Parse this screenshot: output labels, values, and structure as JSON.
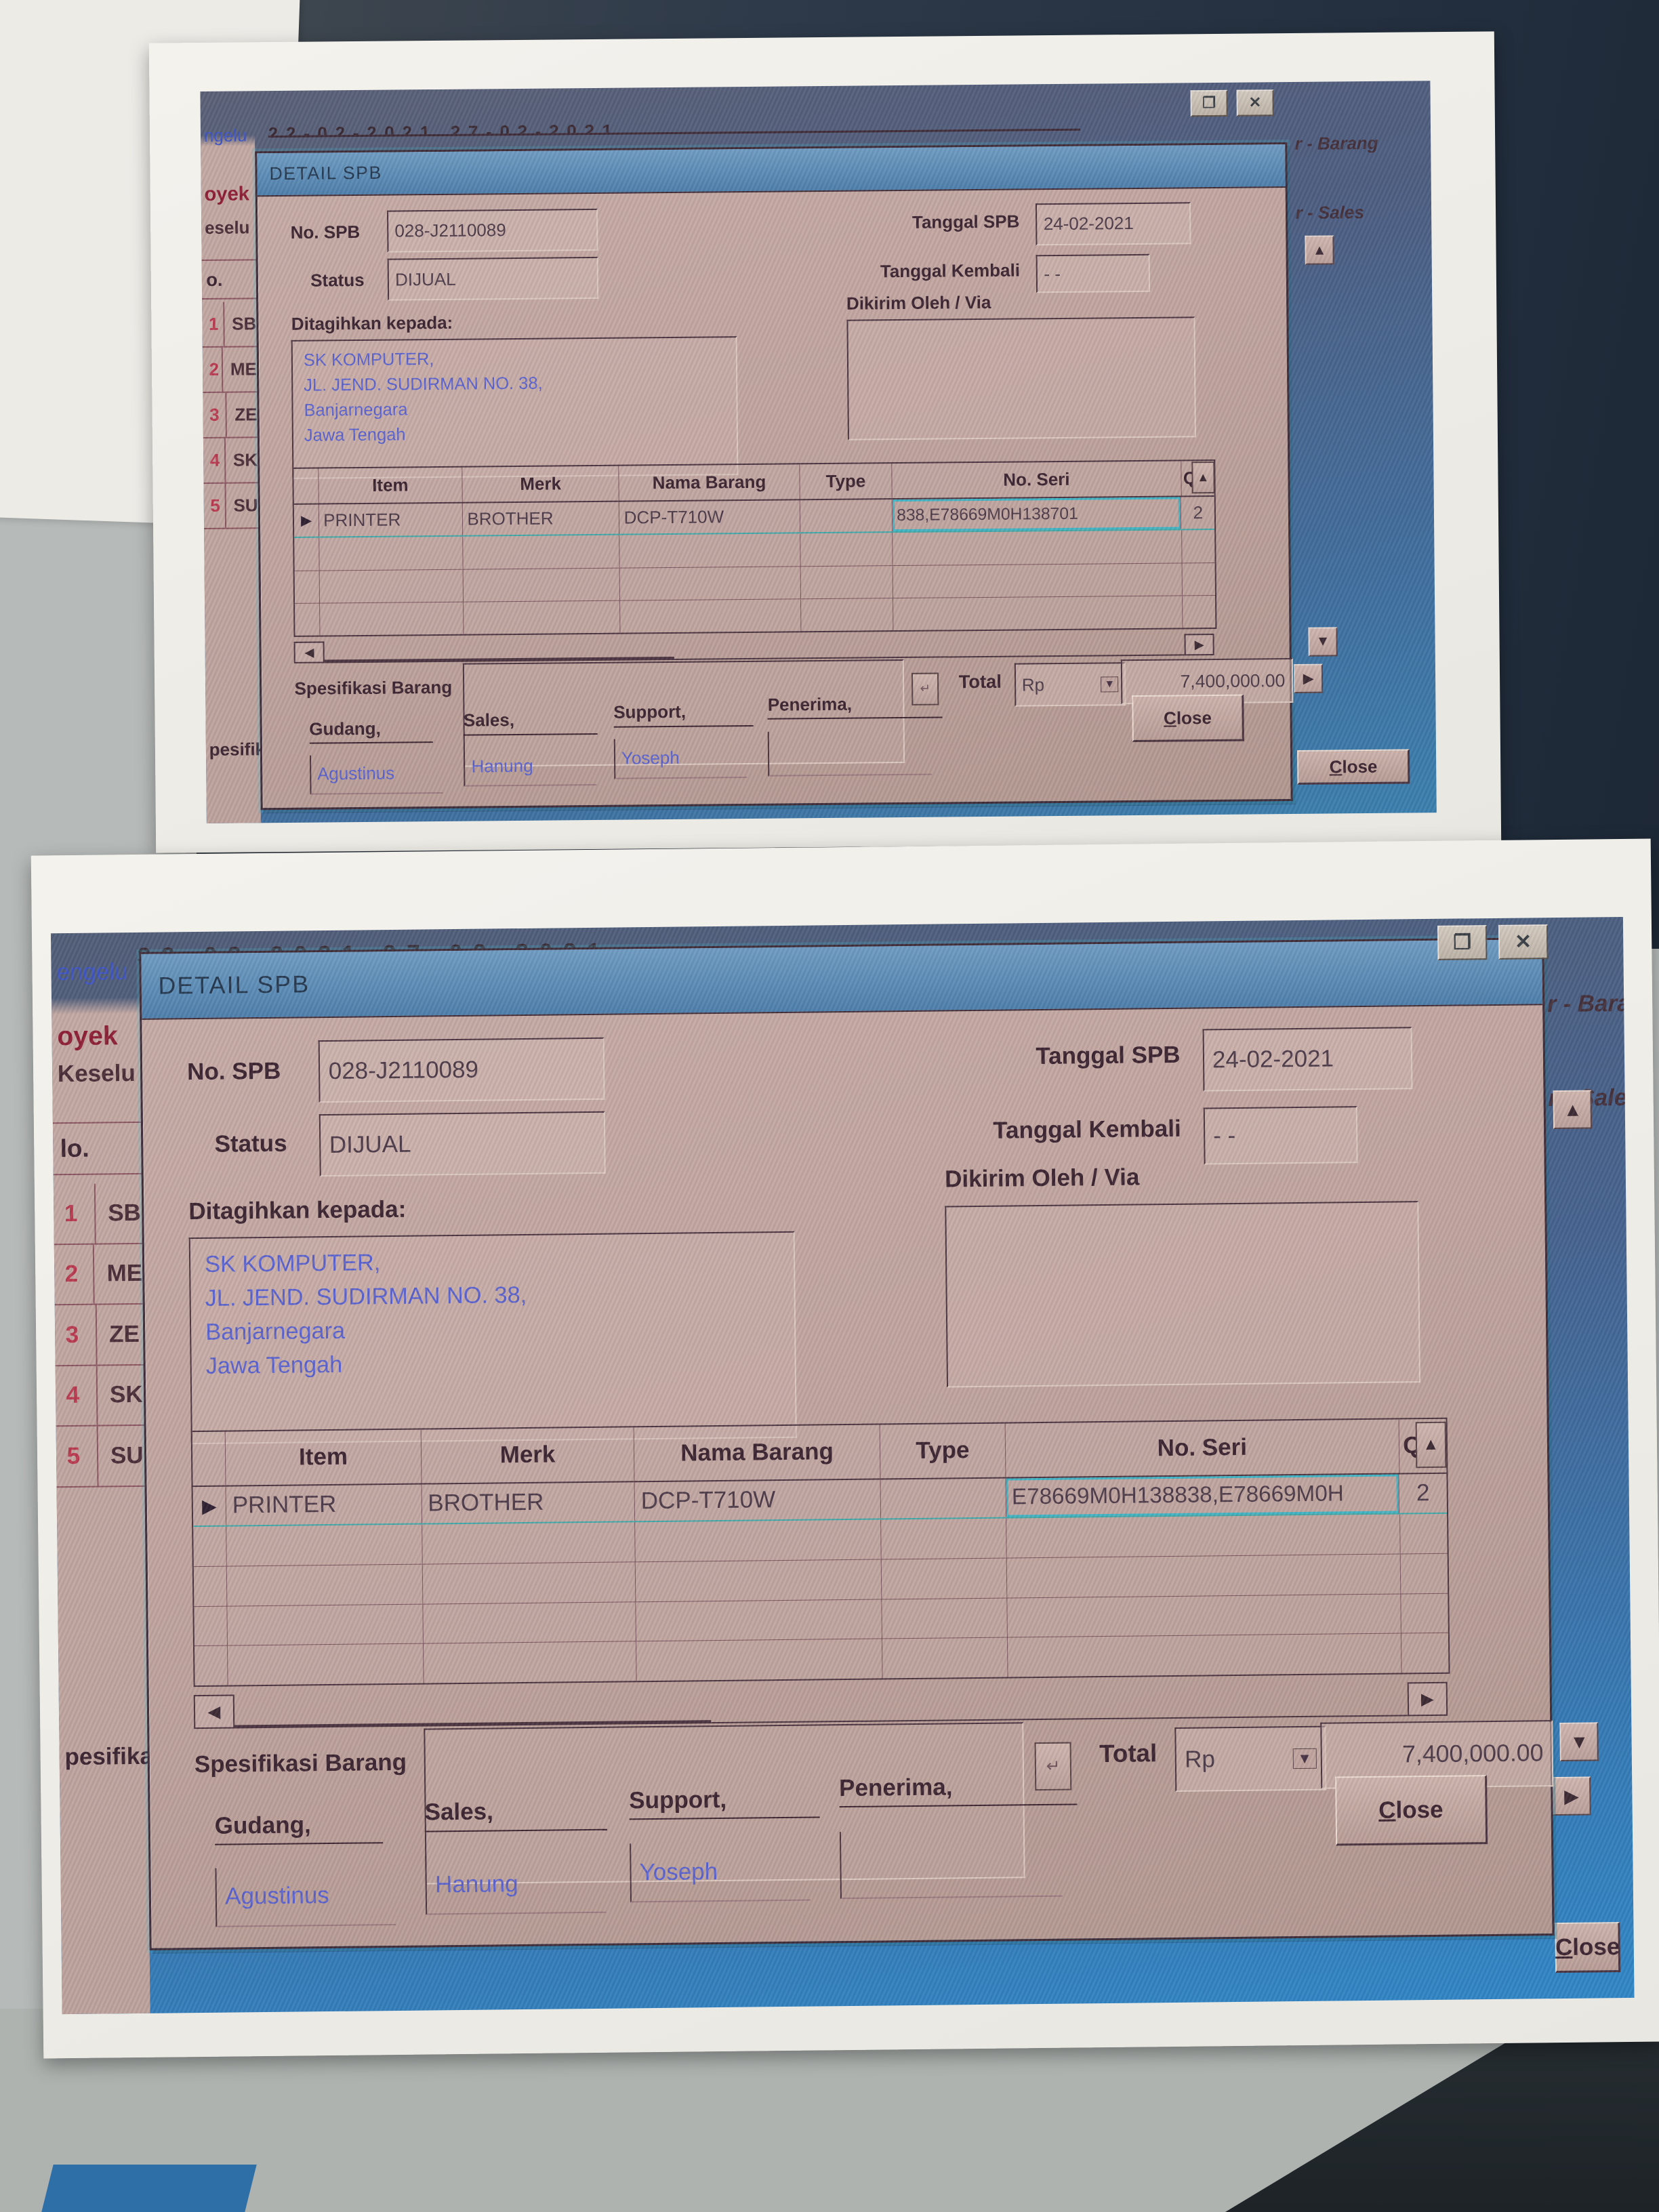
{
  "shared": {
    "dialog": {
      "title": "DETAIL SPB",
      "no_spb_label": "No. SPB",
      "tanggal_spb_label": "Tanggal SPB",
      "status_label": "Status",
      "tanggal_kembali_label": "Tanggal Kembali",
      "ditagihkan_label": "Ditagihkan kepada:",
      "dikirim_label": "Dikirim Oleh / Via",
      "spesifikasi_label": "Spesifikasi Barang",
      "total_label": "Total",
      "currency": "Rp",
      "gudang_label": "Gudang,",
      "sales_label": "Sales,",
      "support_label": "Support,",
      "penerima_label": "Penerima,",
      "close_label": "Close",
      "no_spb": "028-J2110089",
      "tanggal_spb": "24-02-2021",
      "status": "DIJUAL",
      "tanggal_kembali": "- -",
      "address": [
        "SK KOMPUTER,",
        "JL. JEND. SUDIRMAN NO. 38,",
        "Banjarnegara",
        "Jawa Tengah"
      ],
      "total_value": "7,400,000.00",
      "gudang_value": "Agustinus",
      "sales_value": "Hanung",
      "support_value": "Yoseph",
      "table_headers": [
        "Item",
        "Merk",
        "Nama Barang",
        "Type",
        "No. Seri",
        "Qty"
      ],
      "row": {
        "item": "PRINTER",
        "merk": "BROTHER",
        "nama_barang": "DCP-T710W",
        "type": "",
        "qty": "2"
      }
    },
    "background_window": {
      "dates_fragment": "22-02-2021   27-02-2021",
      "right_label_barang": "r - Barang",
      "right_label_sales": "r - Sales",
      "close_label": "Close",
      "rows": [
        [
          "1",
          "SB"
        ],
        [
          "2",
          "ME"
        ],
        [
          "3",
          "ZE"
        ],
        [
          "4",
          "SK"
        ],
        [
          "5",
          "SU"
        ]
      ]
    },
    "icons": {
      "up": "▲",
      "down": "▼",
      "left": "◀",
      "right": "▶",
      "pointer": "▶",
      "close": "✕",
      "restore": "❐",
      "combo": "▼",
      "return": "↵"
    }
  },
  "paper_top": {
    "serial": "838,E78669M0H138701",
    "left": {
      "pengeluaran": "ngelu",
      "proyek": "oyek",
      "keseluruhan": "eselu",
      "no": "o.",
      "spesifikasi": "pesifika:"
    }
  },
  "paper_bottom": {
    "serial": "E78669M0H138838,E78669M0H",
    "left": {
      "pengeluaran": "engelu",
      "proyek": "oyek",
      "keseluruhan": "Keselu",
      "no": "lo.",
      "spesifikasi": "pesifika:"
    }
  }
}
